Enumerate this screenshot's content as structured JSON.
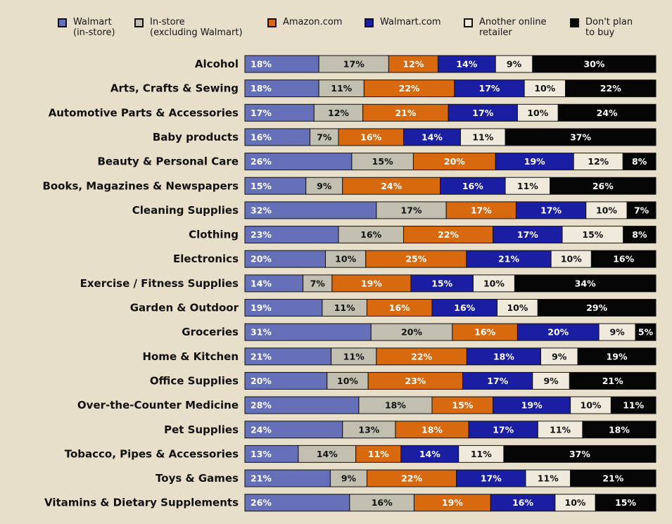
{
  "chart_data": {
    "type": "bar",
    "orientation": "horizontal",
    "stacked": true,
    "normalized": true,
    "value_suffix": "%",
    "legend_position": "top",
    "categories": [
      "Alcohol",
      "Arts, Crafts & Sewing",
      "Automotive Parts & Accessories",
      "Baby products",
      "Beauty & Personal Care",
      "Books, Magazines & Newspapers",
      "Cleaning Supplies",
      "Clothing",
      "Electronics",
      "Exercise / Fitness Supplies",
      "Garden & Outdoor",
      "Groceries",
      "Home & Kitchen",
      "Office Supplies",
      "Over-the-Counter Medicine",
      "Pet Supplies",
      "Tobacco, Pipes & Accessories",
      "Toys & Games",
      "Vitamins & Dietary Supplements"
    ],
    "series": [
      {
        "name": "Walmart\n(in-store)",
        "color": "#6670b8",
        "label_color": "#ffffff",
        "values": [
          18,
          18,
          17,
          16,
          26,
          15,
          32,
          23,
          20,
          14,
          19,
          31,
          21,
          20,
          28,
          24,
          13,
          21,
          26
        ]
      },
      {
        "name": "In-store\n(excluding Walmart)",
        "color": "#c2bfb0",
        "label_color": "#111111",
        "values": [
          17,
          11,
          12,
          7,
          15,
          9,
          17,
          16,
          10,
          7,
          11,
          20,
          11,
          10,
          18,
          13,
          14,
          9,
          16
        ]
      },
      {
        "name": "Amazon.com",
        "color": "#d8690f",
        "label_color": "#ffffff",
        "values": [
          12,
          22,
          21,
          16,
          20,
          24,
          17,
          22,
          25,
          19,
          16,
          16,
          22,
          23,
          15,
          18,
          11,
          22,
          19
        ]
      },
      {
        "name": "Walmart.com",
        "color": "#1a1ea3",
        "label_color": "#ffffff",
        "values": [
          14,
          17,
          17,
          14,
          19,
          16,
          17,
          17,
          21,
          15,
          16,
          20,
          18,
          17,
          19,
          17,
          14,
          17,
          16
        ]
      },
      {
        "name": "Another online\nretailer",
        "color": "#efeadb",
        "label_color": "#111111",
        "values": [
          9,
          10,
          10,
          11,
          12,
          11,
          10,
          15,
          10,
          10,
          10,
          9,
          9,
          9,
          10,
          11,
          11,
          11,
          10
        ]
      },
      {
        "name": "Don't plan\nto buy",
        "color": "#050505",
        "label_color": "#ffffff",
        "values": [
          30,
          22,
          24,
          37,
          8,
          26,
          7,
          8,
          16,
          34,
          29,
          5,
          19,
          21,
          11,
          18,
          37,
          21,
          15
        ]
      }
    ]
  }
}
